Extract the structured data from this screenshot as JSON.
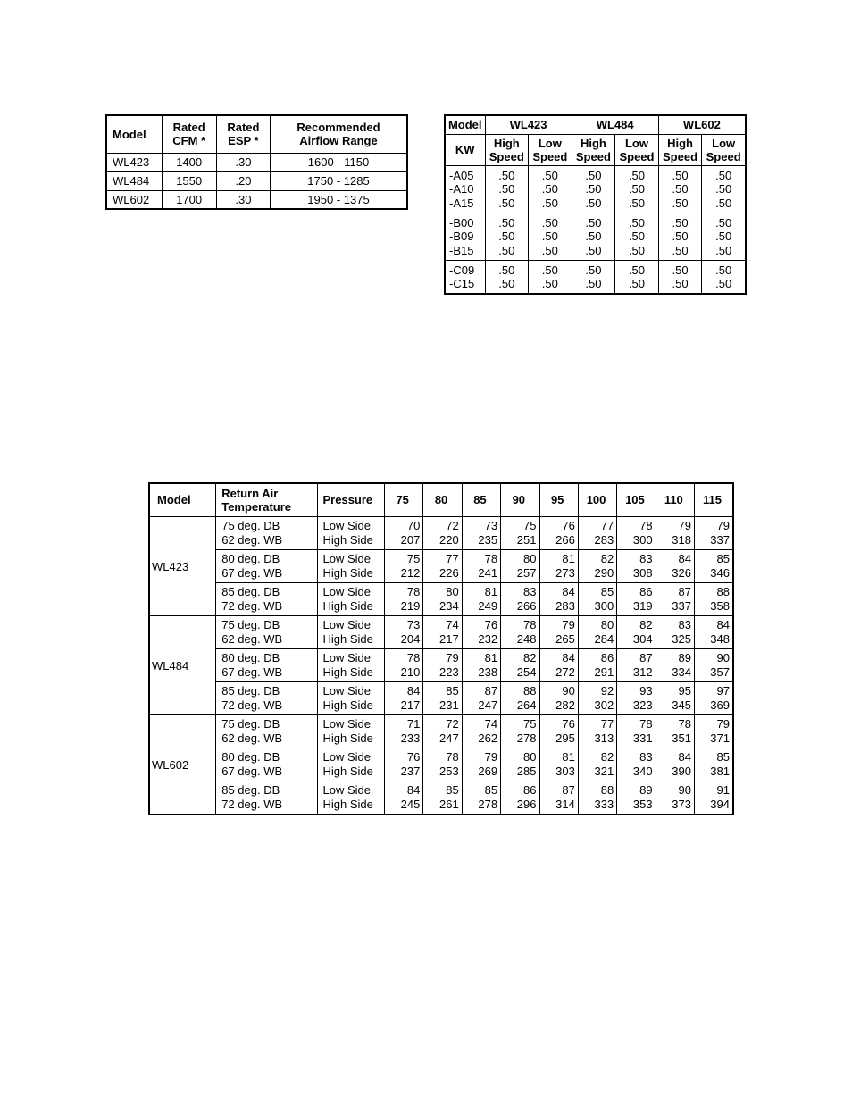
{
  "tableA": {
    "headers": {
      "model": "Model",
      "cfm": "Rated\nCFM *",
      "esp": "Rated\nESP  *",
      "range": "Recommended\nAirflow Range"
    },
    "rows": [
      {
        "model": "WL423",
        "cfm": "1400",
        "esp": ".30",
        "range": "1600 - 1150"
      },
      {
        "model": "WL484",
        "cfm": "1550",
        "esp": ".20",
        "range": "1750 - 1285"
      },
      {
        "model": "WL602",
        "cfm": "1700",
        "esp": ".30",
        "range": "1950 - 1375"
      }
    ]
  },
  "tableB": {
    "headers": {
      "model_label": "Model",
      "kw_label": "KW",
      "models": [
        "WL423",
        "WL484",
        "WL602"
      ],
      "hi": "High\nSpeed",
      "lo": "Low\nSpeed"
    },
    "groups": [
      {
        "rows": [
          {
            "kw": "-A05",
            "vals": [
              ".50",
              ".50",
              ".50",
              ".50",
              ".50",
              ".50"
            ]
          },
          {
            "kw": "-A10",
            "vals": [
              ".50",
              ".50",
              ".50",
              ".50",
              ".50",
              ".50"
            ]
          },
          {
            "kw": "-A15",
            "vals": [
              ".50",
              ".50",
              ".50",
              ".50",
              ".50",
              ".50"
            ]
          }
        ]
      },
      {
        "rows": [
          {
            "kw": "-B00",
            "vals": [
              ".50",
              ".50",
              ".50",
              ".50",
              ".50",
              ".50"
            ]
          },
          {
            "kw": "-B09",
            "vals": [
              ".50",
              ".50",
              ".50",
              ".50",
              ".50",
              ".50"
            ]
          },
          {
            "kw": "-B15",
            "vals": [
              ".50",
              ".50",
              ".50",
              ".50",
              ".50",
              ".50"
            ]
          }
        ]
      },
      {
        "rows": [
          {
            "kw": "-C09",
            "vals": [
              ".50",
              ".50",
              ".50",
              ".50",
              ".50",
              ".50"
            ]
          },
          {
            "kw": "-C15",
            "vals": [
              ".50",
              ".50",
              ".50",
              ".50",
              ".50",
              ".50"
            ]
          }
        ]
      }
    ]
  },
  "tableC": {
    "headers": {
      "model": "Model",
      "rat": "Return Air\nTemperature",
      "pressure": "Pressure",
      "temps": [
        "75",
        "80",
        "85",
        "90",
        "95",
        "100",
        "105",
        "110",
        "115"
      ]
    },
    "conditions": [
      {
        "db": "75 deg. DB",
        "wb": "62 deg. WB"
      },
      {
        "db": "80 deg. DB",
        "wb": "67 deg. WB"
      },
      {
        "db": "85 deg. DB",
        "wb": "72 deg. WB"
      }
    ],
    "pressure_labels": {
      "low": "Low Side",
      "high": "High Side"
    },
    "models": [
      {
        "name": "WL423",
        "rows": [
          {
            "low": [
              "70",
              "72",
              "73",
              "75",
              "76",
              "77",
              "78",
              "79",
              "79"
            ],
            "high": [
              "207",
              "220",
              "235",
              "251",
              "266",
              "283",
              "300",
              "318",
              "337"
            ]
          },
          {
            "low": [
              "75",
              "77",
              "78",
              "80",
              "81",
              "82",
              "83",
              "84",
              "85"
            ],
            "high": [
              "212",
              "226",
              "241",
              "257",
              "273",
              "290",
              "308",
              "326",
              "346"
            ]
          },
          {
            "low": [
              "78",
              "80",
              "81",
              "83",
              "84",
              "85",
              "86",
              "87",
              "88"
            ],
            "high": [
              "219",
              "234",
              "249",
              "266",
              "283",
              "300",
              "319",
              "337",
              "358"
            ]
          }
        ]
      },
      {
        "name": "WL484",
        "rows": [
          {
            "low": [
              "73",
              "74",
              "76",
              "78",
              "79",
              "80",
              "82",
              "83",
              "84"
            ],
            "high": [
              "204",
              "217",
              "232",
              "248",
              "265",
              "284",
              "304",
              "325",
              "348"
            ]
          },
          {
            "low": [
              "78",
              "79",
              "81",
              "82",
              "84",
              "86",
              "87",
              "89",
              "90"
            ],
            "high": [
              "210",
              "223",
              "238",
              "254",
              "272",
              "291",
              "312",
              "334",
              "357"
            ]
          },
          {
            "low": [
              "84",
              "85",
              "87",
              "88",
              "90",
              "92",
              "93",
              "95",
              "97"
            ],
            "high": [
              "217",
              "231",
              "247",
              "264",
              "282",
              "302",
              "323",
              "345",
              "369"
            ]
          }
        ]
      },
      {
        "name": "WL602",
        "rows": [
          {
            "low": [
              "71",
              "72",
              "74",
              "75",
              "76",
              "77",
              "78",
              "78",
              "79"
            ],
            "high": [
              "233",
              "247",
              "262",
              "278",
              "295",
              "313",
              "331",
              "351",
              "371"
            ]
          },
          {
            "low": [
              "76",
              "78",
              "79",
              "80",
              "81",
              "82",
              "83",
              "84",
              "85"
            ],
            "high": [
              "237",
              "253",
              "269",
              "285",
              "303",
              "321",
              "340",
              "390",
              "381"
            ]
          },
          {
            "low": [
              "84",
              "85",
              "85",
              "86",
              "87",
              "88",
              "89",
              "90",
              "91"
            ],
            "high": [
              "245",
              "261",
              "278",
              "296",
              "314",
              "333",
              "353",
              "373",
              "394"
            ]
          }
        ]
      }
    ]
  },
  "colors": {
    "border": "#000000",
    "background": "#ffffff",
    "text": "#000000"
  }
}
